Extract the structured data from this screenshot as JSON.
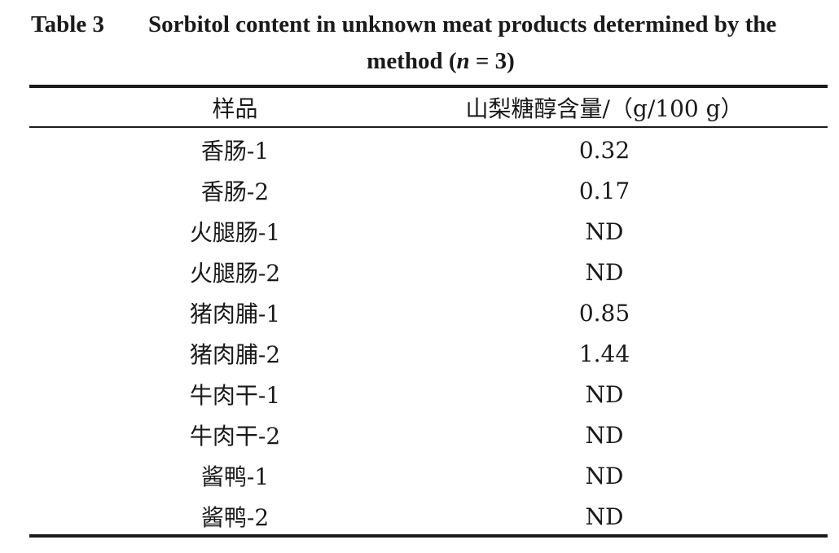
{
  "caption": {
    "label": "Table 3",
    "text_line1": "Sorbitol content in unknown meat products determined by the",
    "text_line2_prefix": "method (",
    "n_symbol": "n",
    "text_line2_suffix": " = 3)"
  },
  "table": {
    "headers": {
      "sample": "样品",
      "value": "山梨糖醇含量/（g/100 g）"
    },
    "rows": [
      {
        "sample": "香肠-1",
        "value": "0.32"
      },
      {
        "sample": "香肠-2",
        "value": "0.17"
      },
      {
        "sample": "火腿肠-1",
        "value": "ND"
      },
      {
        "sample": "火腿肠-2",
        "value": "ND"
      },
      {
        "sample": "猪肉脯-1",
        "value": "0.85"
      },
      {
        "sample": "猪肉脯-2",
        "value": "1.44"
      },
      {
        "sample": "牛肉干-1",
        "value": "ND"
      },
      {
        "sample": "牛肉干-2",
        "value": "ND"
      },
      {
        "sample": "酱鸭-1",
        "value": "ND"
      },
      {
        "sample": "酱鸭-2",
        "value": "ND"
      }
    ]
  }
}
